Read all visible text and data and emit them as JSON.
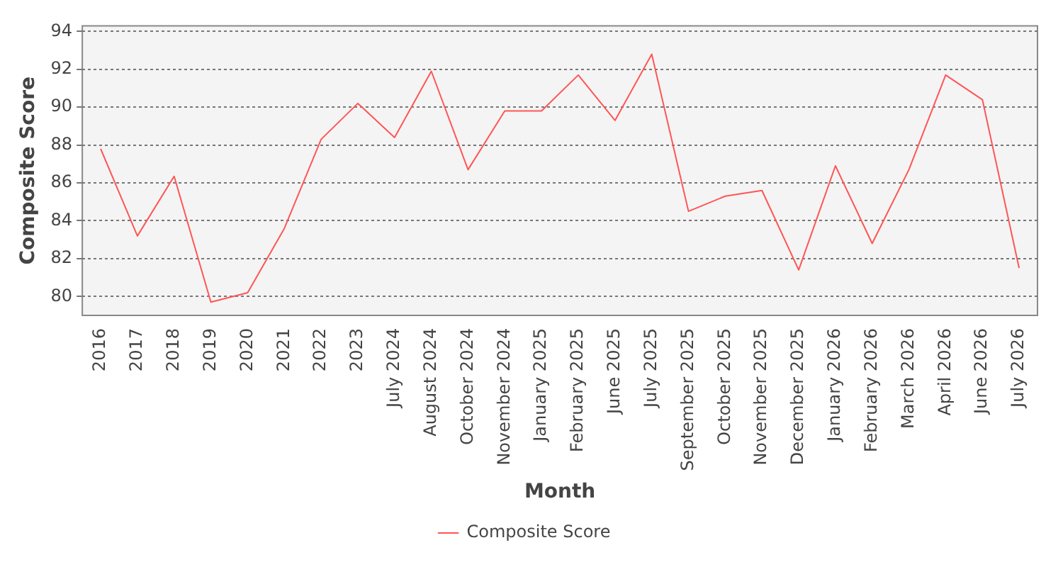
{
  "chart_data": {
    "type": "line",
    "xlabel": "Month",
    "ylabel": "Composite Score",
    "categories": [
      "2016",
      "2017",
      "2018",
      "2019",
      "2020",
      "2021",
      "2022",
      "2023",
      "July 2024",
      "August 2024",
      "October 2024",
      "November 2024",
      "January 2025",
      "February 2025",
      "June 2025",
      "July 2025",
      "September 2025",
      "October 2025",
      "November 2025",
      "December 2025",
      "January 2026",
      "February 2026",
      "March 2026",
      "April 2026",
      "June 2026",
      "July 2026"
    ],
    "series": [
      {
        "name": "Composite Score",
        "color": "#ff5555",
        "values": [
          87.8,
          83.2,
          86.35,
          79.7,
          80.2,
          83.6,
          88.3,
          90.2,
          88.4,
          91.9,
          86.7,
          89.8,
          89.8,
          91.7,
          89.3,
          92.8,
          84.5,
          85.3,
          85.6,
          81.4,
          86.9,
          82.8,
          86.7,
          91.7,
          90.4,
          81.5
        ]
      }
    ],
    "ylim": [
      79,
      94.3
    ],
    "yticks": [
      80,
      82,
      84,
      86,
      88,
      90,
      92,
      94
    ],
    "grid": "y",
    "legend": "bottom",
    "marker": "none",
    "line_style": "solid"
  }
}
